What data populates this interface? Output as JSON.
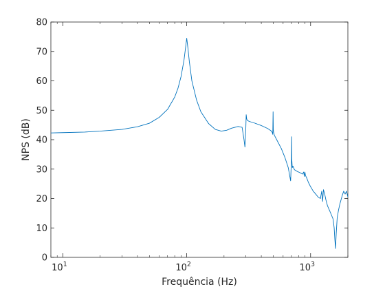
{
  "chart_data": {
    "type": "line",
    "title": "",
    "xlabel": "Frequência (Hz)",
    "ylabel": "NPS (dB)",
    "x_scale": "log",
    "xlim": [
      8,
      2000
    ],
    "ylim": [
      0,
      80
    ],
    "grid": false,
    "legend": "none",
    "x_ticks": [
      {
        "value": 10,
        "base": "10",
        "exp": "1"
      },
      {
        "value": 100,
        "base": "10",
        "exp": "2"
      },
      {
        "value": 1000,
        "base": "10",
        "exp": "3"
      }
    ],
    "y_ticks": [
      0,
      10,
      20,
      30,
      40,
      50,
      60,
      70,
      80
    ],
    "series": [
      {
        "color": "#0072BD",
        "x": [
          8,
          10,
          15,
          20,
          30,
          40,
          50,
          60,
          70,
          80,
          85,
          90,
          95,
          98,
          100,
          102,
          105,
          110,
          120,
          130,
          150,
          170,
          190,
          210,
          230,
          260,
          280,
          290,
          295,
          300,
          302,
          305,
          310,
          320,
          350,
          400,
          450,
          480,
          490,
          495,
          498,
          500,
          503,
          510,
          540,
          580,
          620,
          660,
          690,
          700,
          703,
          705,
          708,
          712,
          720,
          740,
          780,
          820,
          860,
          880,
          890,
          900,
          910,
          930,
          960,
          1000,
          1050,
          1100,
          1150,
          1200,
          1230,
          1250,
          1270,
          1300,
          1330,
          1370,
          1420,
          1470,
          1520,
          1550,
          1570,
          1590,
          1610,
          1640,
          1680,
          1720,
          1760,
          1800,
          1850,
          1900,
          1950,
          2000
        ],
        "y": [
          42.3,
          42.4,
          42.6,
          42.9,
          43.5,
          44.4,
          45.6,
          47.6,
          50.3,
          54.5,
          57.5,
          61.5,
          67.0,
          71.5,
          74.5,
          71.5,
          66.5,
          60.0,
          53.5,
          49.5,
          45.5,
          43.5,
          42.9,
          43.2,
          43.9,
          44.5,
          44.2,
          40.0,
          37.5,
          44.0,
          48.5,
          47.0,
          46.5,
          46.2,
          45.7,
          44.8,
          43.8,
          43.0,
          42.5,
          41.8,
          49.5,
          43.5,
          42.5,
          41.5,
          39.5,
          37.0,
          34.0,
          30.5,
          26.0,
          33.0,
          41.0,
          33.5,
          32.0,
          30.5,
          31.0,
          29.8,
          29.2,
          28.8,
          28.3,
          29.0,
          27.5,
          29.0,
          27.8,
          27.0,
          25.5,
          24.0,
          22.5,
          21.5,
          20.5,
          20.0,
          22.5,
          19.0,
          23.0,
          21.5,
          19.5,
          17.5,
          16.0,
          14.5,
          13.0,
          10.0,
          6.0,
          3.0,
          8.0,
          13.5,
          16.0,
          18.0,
          19.5,
          21.0,
          22.5,
          21.5,
          22.5,
          20.5
        ]
      }
    ]
  }
}
